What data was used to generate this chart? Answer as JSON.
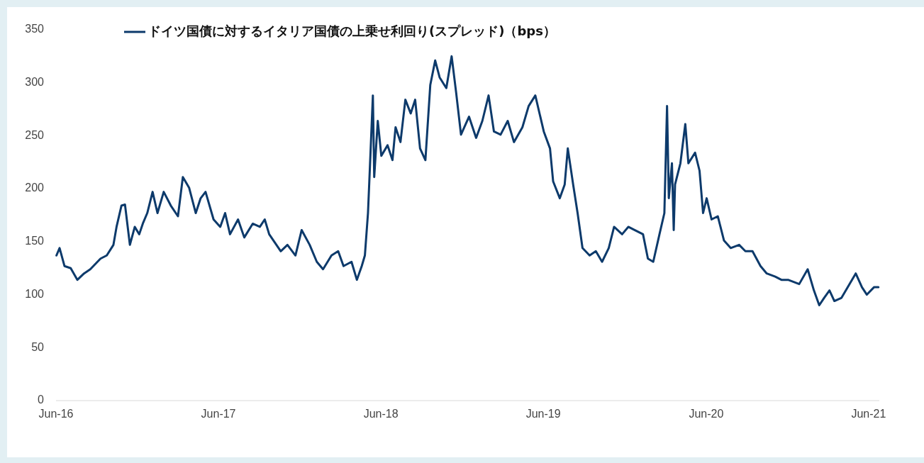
{
  "chart_data": {
    "type": "line",
    "legend": "top left",
    "grid": false,
    "xticks": [
      {
        "value": "2016-06-01",
        "label": "Jun-16"
      },
      {
        "value": "2017-06-01",
        "label": "Jun-17"
      },
      {
        "value": "2018-06-01",
        "label": "Jun-18"
      },
      {
        "value": "2019-06-01",
        "label": "Jun-19"
      },
      {
        "value": "2020-06-01",
        "label": "Jun-20"
      },
      {
        "value": "2021-06-01",
        "label": "Jun-21"
      }
    ],
    "xlim": [
      "2016-06-01",
      "2021-06-25"
    ],
    "ylim": [
      0,
      350
    ],
    "yticks": [
      0,
      50,
      100,
      150,
      200,
      250,
      300,
      350
    ],
    "x": [
      "2016-06-02",
      "2016-06-09",
      "2016-06-20",
      "2016-07-04",
      "2016-07-19",
      "2016-08-03",
      "2016-08-17",
      "2016-09-09",
      "2016-09-23",
      "2016-10-08",
      "2016-10-15",
      "2016-10-26",
      "2016-11-03",
      "2016-11-14",
      "2016-11-25",
      "2016-12-05",
      "2016-12-13",
      "2016-12-23",
      "2017-01-04",
      "2017-01-15",
      "2017-01-29",
      "2017-02-14",
      "2017-03-02",
      "2017-03-13",
      "2017-03-27",
      "2017-04-11",
      "2017-04-22",
      "2017-05-03",
      "2017-05-21",
      "2017-06-05",
      "2017-06-16",
      "2017-06-27",
      "2017-07-15",
      "2017-07-29",
      "2017-08-17",
      "2017-09-02",
      "2017-09-13",
      "2017-09-23",
      "2017-10-19",
      "2017-11-03",
      "2017-11-21",
      "2017-12-05",
      "2017-12-23",
      "2018-01-08",
      "2018-01-22",
      "2018-02-10",
      "2018-02-25",
      "2018-03-09",
      "2018-03-27",
      "2018-04-08",
      "2018-04-19",
      "2018-04-26",
      "2018-05-03",
      "2018-05-07",
      "2018-05-14",
      "2018-05-17",
      "2018-05-25",
      "2018-06-02",
      "2018-06-16",
      "2018-06-27",
      "2018-07-04",
      "2018-07-15",
      "2018-07-26",
      "2018-08-07",
      "2018-08-17",
      "2018-08-28",
      "2018-09-09",
      "2018-09-20",
      "2018-10-01",
      "2018-10-11",
      "2018-10-26",
      "2018-11-07",
      "2018-11-17",
      "2018-11-28",
      "2018-12-16",
      "2019-01-01",
      "2019-01-15",
      "2019-01-29",
      "2019-02-10",
      "2019-02-25",
      "2019-03-13",
      "2019-03-27",
      "2019-04-15",
      "2019-04-29",
      "2019-05-14",
      "2019-06-02",
      "2019-06-16",
      "2019-06-23",
      "2019-07-08",
      "2019-07-19",
      "2019-07-26",
      "2019-08-07",
      "2019-08-17",
      "2019-08-28",
      "2019-09-13",
      "2019-09-27",
      "2019-10-11",
      "2019-10-26",
      "2019-11-07",
      "2019-11-25",
      "2019-12-09",
      "2019-12-23",
      "2020-01-11",
      "2020-01-22",
      "2020-02-03",
      "2020-02-17",
      "2020-02-28",
      "2020-03-05",
      "2020-03-09",
      "2020-03-16",
      "2020-03-20",
      "2020-03-23",
      "2020-04-04",
      "2020-04-15",
      "2020-04-22",
      "2020-05-07",
      "2020-05-17",
      "2020-05-25",
      "2020-06-02",
      "2020-06-13",
      "2020-06-27",
      "2020-07-11",
      "2020-07-26",
      "2020-08-14",
      "2020-08-28",
      "2020-09-13",
      "2020-10-01",
      "2020-10-15",
      "2020-11-03",
      "2020-11-17",
      "2020-12-02",
      "2020-12-27",
      "2021-01-15",
      "2021-01-29",
      "2021-02-10",
      "2021-02-21",
      "2021-03-05",
      "2021-03-16",
      "2021-04-01",
      "2021-04-15",
      "2021-05-03",
      "2021-05-17",
      "2021-05-28",
      "2021-06-13",
      "2021-06-23"
    ],
    "series": [
      {
        "name": "ドイツ国債に対するイタリア国債の上乗せ利回り(スプレッド)（bps）",
        "color": "#0d3a6b",
        "values": [
          137,
          144,
          127,
          125,
          114,
          120,
          124,
          134,
          137,
          147,
          164,
          184,
          185,
          147,
          164,
          157,
          167,
          177,
          197,
          177,
          197,
          184,
          174,
          211,
          201,
          177,
          191,
          197,
          171,
          164,
          177,
          157,
          171,
          154,
          167,
          164,
          171,
          157,
          141,
          147,
          137,
          161,
          147,
          131,
          124,
          137,
          141,
          127,
          131,
          114,
          127,
          137,
          177,
          217,
          288,
          211,
          264,
          231,
          241,
          227,
          258,
          244,
          284,
          271,
          284,
          238,
          227,
          298,
          321,
          305,
          295,
          325,
          291,
          251,
          268,
          248,
          264,
          288,
          254,
          251,
          264,
          244,
          258,
          278,
          288,
          254,
          238,
          207,
          191,
          204,
          238,
          204,
          177,
          144,
          137,
          141,
          131,
          144,
          164,
          157,
          164,
          161,
          157,
          134,
          131,
          157,
          177,
          278,
          191,
          224,
          161,
          204,
          224,
          261,
          224,
          234,
          217,
          177,
          191,
          171,
          174,
          151,
          144,
          147,
          141,
          141,
          127,
          120,
          117,
          114,
          114,
          110,
          124,
          104,
          90,
          97,
          104,
          94,
          97,
          107,
          120,
          107,
          100,
          107,
          107
        ]
      }
    ]
  }
}
